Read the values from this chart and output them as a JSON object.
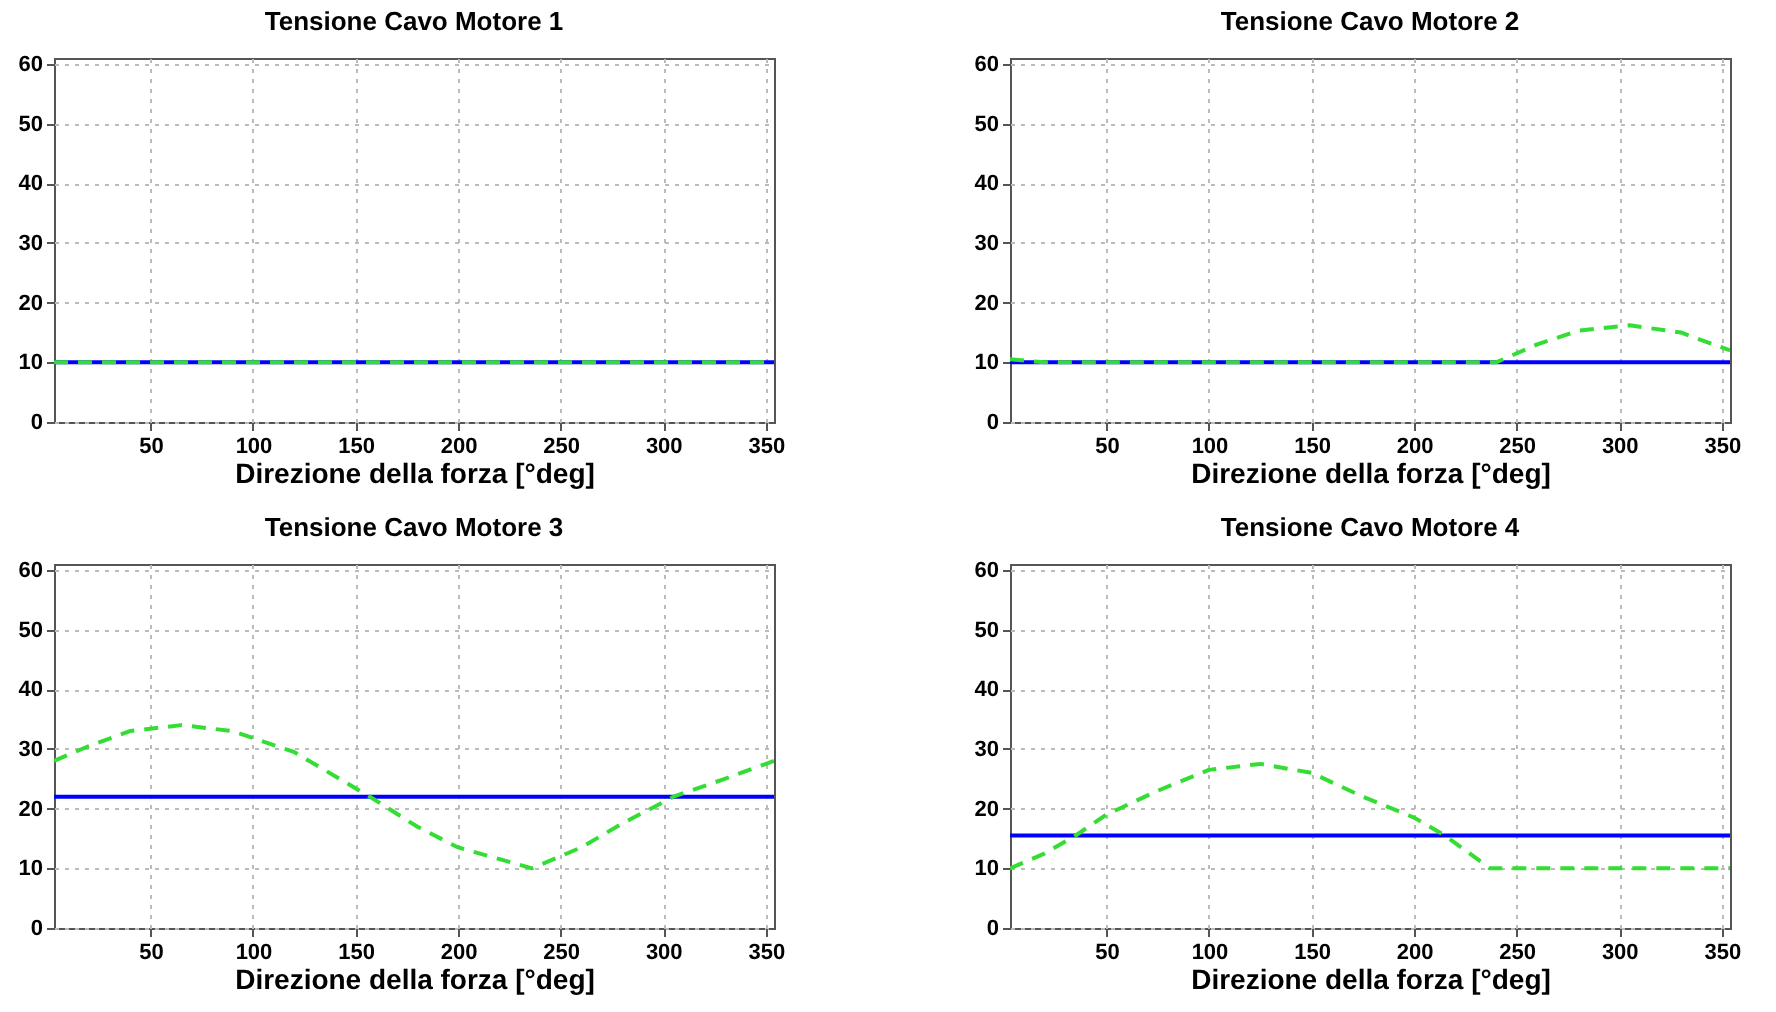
{
  "chart_data": [
    {
      "type": "line",
      "title": "Tensione Cavo Motore 1",
      "xlabel": "Direzione della forza [°deg]",
      "xlim": [
        3,
        354
      ],
      "xticks": [
        50,
        100,
        150,
        200,
        250,
        300,
        350
      ],
      "ylim": [
        0,
        61
      ],
      "yticks": [
        0,
        10,
        20,
        30,
        40,
        50,
        60
      ],
      "grid": true,
      "series": [
        {
          "color": "#0000ff",
          "line_style": "solid",
          "x": [
            3,
            354
          ],
          "values": [
            10,
            10
          ]
        },
        {
          "color": "#33dd33",
          "line_style": "dashed",
          "x": [
            3,
            354
          ],
          "values": [
            10,
            10
          ]
        }
      ]
    },
    {
      "type": "line",
      "title": "Tensione Cavo Motore 2",
      "xlabel": "Direzione della forza [°deg]",
      "xlim": [
        3,
        354
      ],
      "xticks": [
        50,
        100,
        150,
        200,
        250,
        300,
        350
      ],
      "ylim": [
        0,
        61
      ],
      "yticks": [
        0,
        10,
        20,
        30,
        40,
        50,
        60
      ],
      "grid": true,
      "series": [
        {
          "color": "#0000ff",
          "line_style": "solid",
          "x": [
            3,
            354
          ],
          "values": [
            10,
            10
          ]
        },
        {
          "color": "#33dd33",
          "line_style": "dashed",
          "x": [
            3,
            20,
            240,
            260,
            280,
            305,
            330,
            354
          ],
          "values": [
            10.5,
            10,
            10,
            13,
            15.3,
            16.2,
            15,
            12
          ]
        }
      ]
    },
    {
      "type": "line",
      "title": "Tensione Cavo Motore 3",
      "xlabel": "Direzione della forza [°deg]",
      "xlim": [
        3,
        354
      ],
      "xticks": [
        50,
        100,
        150,
        200,
        250,
        300,
        350
      ],
      "ylim": [
        0,
        61
      ],
      "yticks": [
        0,
        10,
        20,
        30,
        40,
        50,
        60
      ],
      "grid": true,
      "series": [
        {
          "color": "#0000ff",
          "line_style": "solid",
          "x": [
            3,
            354
          ],
          "values": [
            22,
            22
          ]
        },
        {
          "color": "#33dd33",
          "line_style": "dashed",
          "x": [
            3,
            20,
            40,
            65,
            90,
            120,
            157,
            180,
            200,
            236,
            260,
            280,
            305,
            330,
            354
          ],
          "values": [
            28,
            30.5,
            33,
            34,
            33,
            29.5,
            22,
            17,
            13.5,
            10,
            13.5,
            17.5,
            22,
            25,
            28
          ]
        }
      ]
    },
    {
      "type": "line",
      "title": "Tensione Cavo Motore 4",
      "xlabel": "Direzione della forza [°deg]",
      "xlim": [
        3,
        354
      ],
      "xticks": [
        50,
        100,
        150,
        200,
        250,
        300,
        350
      ],
      "ylim": [
        0,
        61
      ],
      "yticks": [
        0,
        10,
        20,
        30,
        40,
        50,
        60
      ],
      "grid": true,
      "series": [
        {
          "color": "#0000ff",
          "line_style": "solid",
          "x": [
            3,
            354
          ],
          "values": [
            15.5,
            15.5
          ]
        },
        {
          "color": "#33dd33",
          "line_style": "dashed",
          "x": [
            3,
            20,
            35,
            50,
            75,
            100,
            125,
            150,
            175,
            200,
            215,
            237,
            300,
            354
          ],
          "values": [
            10,
            12.5,
            15.5,
            19,
            23,
            26.5,
            27.5,
            26,
            22,
            18.5,
            15.5,
            10,
            10,
            10
          ]
        }
      ]
    }
  ]
}
